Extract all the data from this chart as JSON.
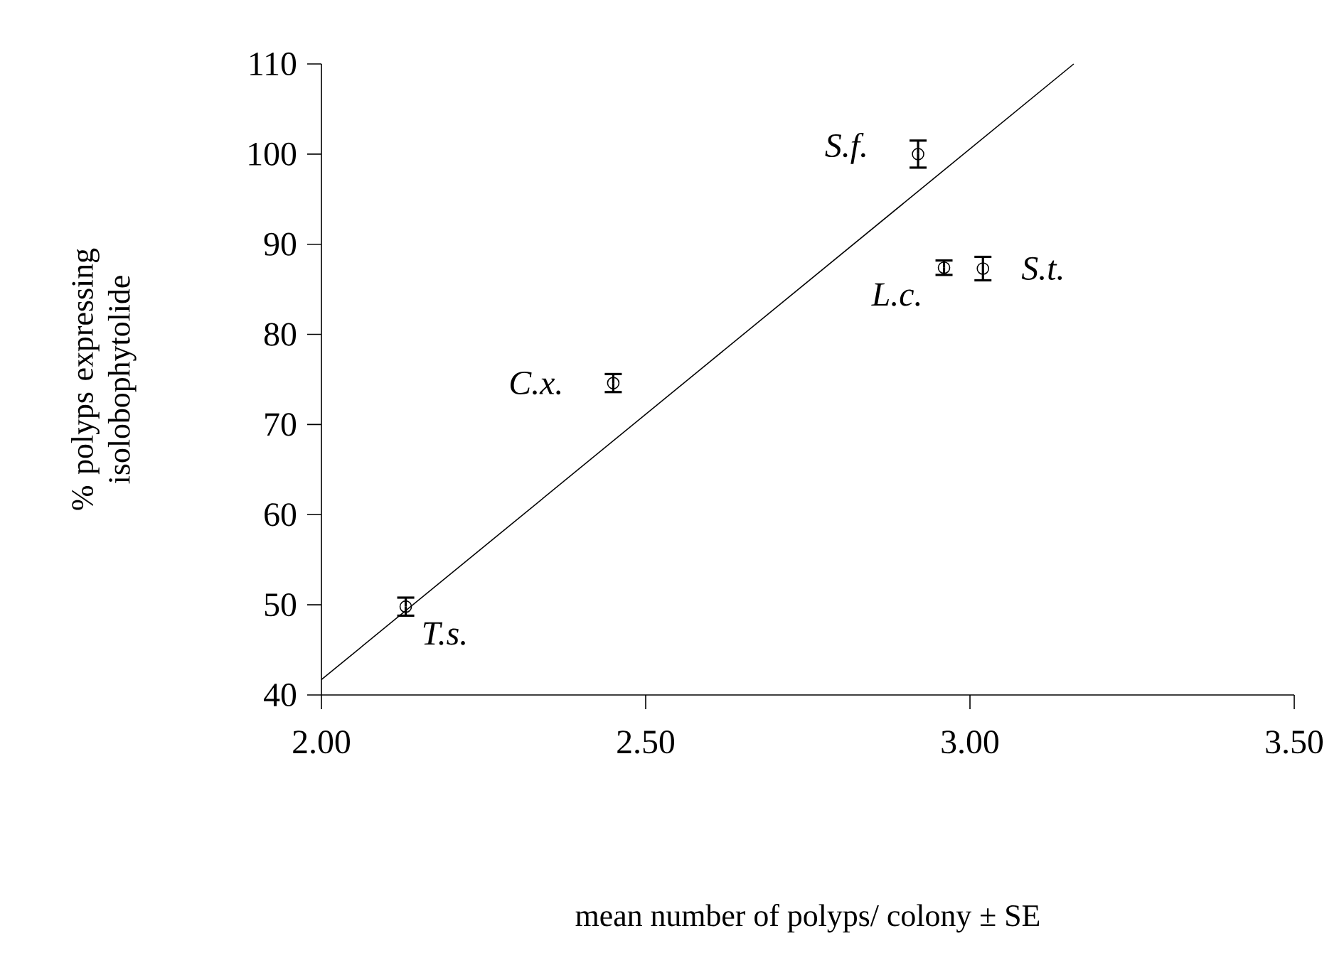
{
  "chart_data": {
    "type": "scatter",
    "xlabel": "mean number of polyps/ colony ± SE",
    "ylabel": "% polyps expressing isolobophytolide",
    "xlim": [
      2.0,
      3.5
    ],
    "ylim": [
      40,
      110
    ],
    "xticks": [
      {
        "value": 2.0,
        "label": "2.00"
      },
      {
        "value": 2.5,
        "label": "2.50"
      },
      {
        "value": 3.0,
        "label": "3.00"
      },
      {
        "value": 3.5,
        "label": "3.50"
      }
    ],
    "yticks": [
      40,
      50,
      60,
      70,
      80,
      90,
      100,
      110
    ],
    "grid": false,
    "marker": "circle",
    "series": [
      {
        "color": "#000000",
        "x": [
          2.13,
          2.45,
          2.92,
          2.96,
          3.02
        ],
        "values": [
          49.8,
          74.6,
          100,
          87.4,
          87.3
        ],
        "errors": [
          1,
          1,
          1.5,
          0.8,
          1.3
        ]
      },
      {
        "type": "line",
        "color": "#000000",
        "x": [
          2.0,
          3.16
        ],
        "values": [
          41.7,
          110
        ],
        "marker": "none"
      }
    ],
    "annotations": [
      {
        "text": "T.s.",
        "x": 2.13,
        "y": 49.8
      },
      {
        "text": "C.x.",
        "x": 2.45,
        "y": 74.6
      },
      {
        "text": "S.f.",
        "x": 2.92,
        "y": 100
      },
      {
        "text": "L.c.",
        "x": 2.96,
        "y": 87.4
      },
      {
        "text": "S.t.",
        "x": 3.02,
        "y": 87.3
      }
    ]
  }
}
